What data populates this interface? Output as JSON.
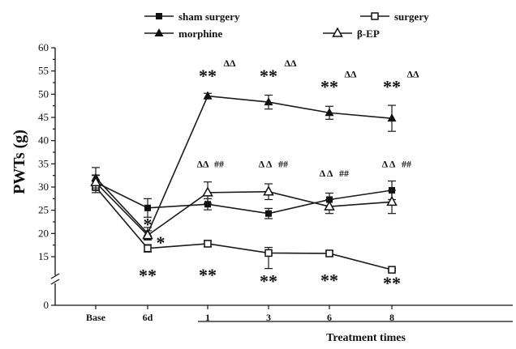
{
  "chart_data": {
    "type": "line",
    "categories": [
      "Base",
      "6d",
      "1",
      "3",
      "6",
      "8"
    ],
    "xlabel": "Treatment times",
    "ylabel": "PWTs (g)",
    "y_break": [
      0,
      15
    ],
    "ylim": [
      0,
      60
    ],
    "yticks_lower": [
      "0"
    ],
    "yticks_upper": [
      "15",
      "20",
      "25",
      "30",
      "35",
      "40",
      "45",
      "50",
      "55",
      "60"
    ],
    "series": [
      {
        "name": "sham surgery",
        "marker": "filled-square",
        "values": [
          31.0,
          25.5,
          26.3,
          24.3,
          27.3,
          29.3
        ],
        "errors": [
          1.5,
          2.0,
          1.2,
          1.1,
          1.4,
          2.0
        ]
      },
      {
        "name": "surgery",
        "marker": "open-square",
        "values": [
          30.0,
          16.8,
          17.8,
          15.8,
          15.7,
          13.6
        ],
        "errors": [
          1.2,
          0.8,
          0.7,
          1.2,
          0.5,
          0.9
        ]
      },
      {
        "name": "morphine",
        "marker": "filled-triangle",
        "values": [
          32.0,
          20.0,
          49.6,
          48.3,
          46.0,
          44.8
        ],
        "errors": [
          2.2,
          1.3,
          0.6,
          1.5,
          1.4,
          2.8
        ]
      },
      {
        "name": "β-EP",
        "marker": "open-triangle",
        "values": [
          31.0,
          19.6,
          28.8,
          29.0,
          25.8,
          26.8
        ],
        "errors": [
          1.6,
          1.0,
          2.3,
          1.7,
          1.5,
          2.5
        ]
      }
    ],
    "annotations": [
      {
        "text": "*",
        "cat": "6d",
        "y": 22.8
      },
      {
        "text": "*",
        "cat": "6d",
        "y": 18.8,
        "dx": 16
      },
      {
        "text": "**",
        "cat": "6d",
        "y": 12.0
      },
      {
        "text": "**",
        "cat": "1",
        "y": 54.8
      },
      {
        "text": "ΔΔ",
        "cat": "1",
        "y": 56.0,
        "dx": 27
      },
      {
        "text": "ΔΔ",
        "cat": "1",
        "y": 34.3,
        "dx": -6
      },
      {
        "text": "##",
        "cat": "1",
        "y": 34.3,
        "dx": 14
      },
      {
        "text": "**",
        "cat": "1",
        "y": 12.3
      },
      {
        "text": "**",
        "cat": "3",
        "y": 54.8
      },
      {
        "text": "ΔΔ",
        "cat": "3",
        "y": 56.0,
        "dx": 27
      },
      {
        "text": "Δ Δ",
        "cat": "3",
        "y": 34.3,
        "dx": -4
      },
      {
        "text": "##",
        "cat": "3",
        "y": 34.3,
        "dx": 18
      },
      {
        "text": "**",
        "cat": "3",
        "y": 7.5
      },
      {
        "text": "**",
        "cat": "6",
        "y": 52.4
      },
      {
        "text": "ΔΔ",
        "cat": "6",
        "y": 53.6,
        "dx": 26
      },
      {
        "text": "Δ Δ",
        "cat": "6",
        "y": 32.3,
        "dx": -4
      },
      {
        "text": "##",
        "cat": "6",
        "y": 32.3,
        "dx": 18
      },
      {
        "text": "**",
        "cat": "6",
        "y": 8.0
      },
      {
        "text": "**",
        "cat": "8",
        "y": 52.4
      },
      {
        "text": "ΔΔ",
        "cat": "8",
        "y": 53.6,
        "dx": 26
      },
      {
        "text": "Δ Δ",
        "cat": "8",
        "y": 34.3,
        "dx": -4
      },
      {
        "text": "##",
        "cat": "8",
        "y": 34.3,
        "dx": 18
      },
      {
        "text": "**",
        "cat": "8",
        "y": 5.8
      }
    ]
  }
}
